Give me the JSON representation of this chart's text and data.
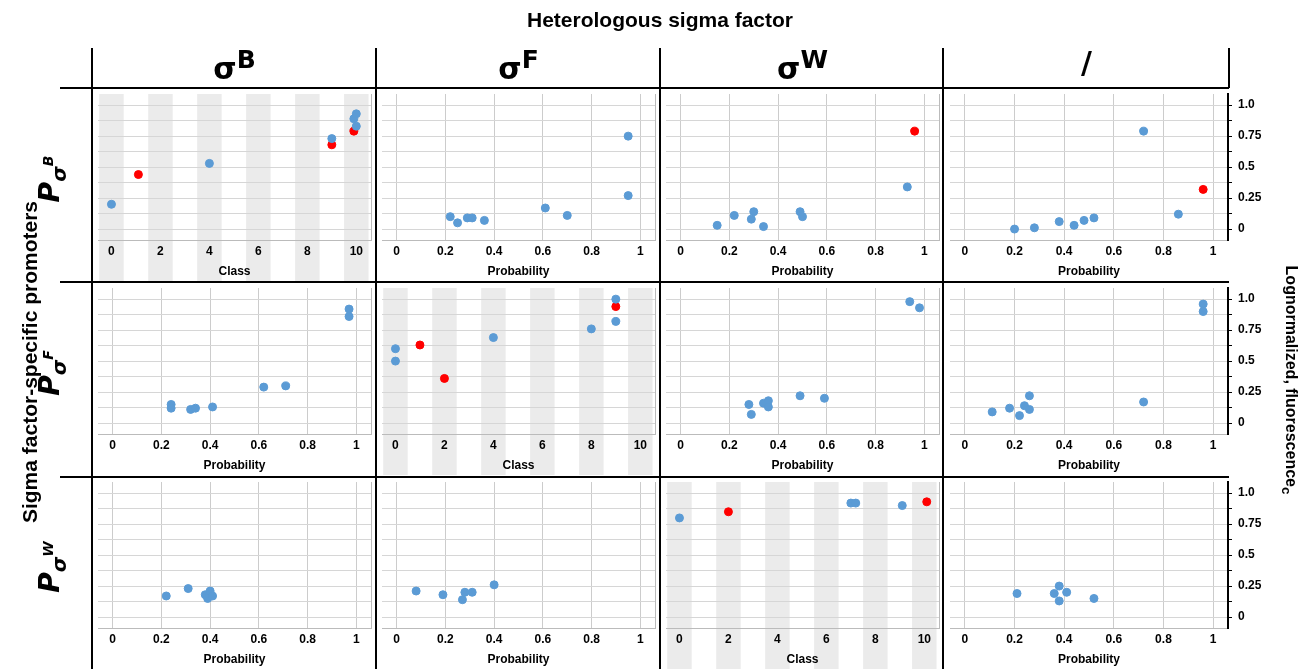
{
  "chart_data": [
    {
      "type": "other",
      "title": "Heterologous sigma factor",
      "ylabel": "Sigma factor-specific promoters",
      "y2label": "Lognormalized, fluorescence$_{c}$"
    },
    {
      "type": "scatter",
      "title": "σ$^{B}$",
      "ylabel": "P$_{σ}$$^{B}$",
      "xlabel": "Class",
      "xlim": [
        -0.55,
        10.6
      ],
      "xticks": [
        0,
        2,
        4,
        6,
        8,
        10
      ],
      "ylim": [
        -0.09,
        1.09
      ],
      "yticks": [
        0,
        0.125,
        0.25,
        0.375,
        0.5,
        0.625,
        0.75,
        0.875,
        1
      ],
      "grid": "y",
      "tick_labels": "x",
      "marker": "circle",
      "legend": false,
      "bands": [
        {
          "axis": "x",
          "from": -0.5,
          "to": 0.5,
          "color": "#ebebeb"
        },
        {
          "axis": "x",
          "from": 1.5,
          "to": 2.5,
          "color": "#ebebeb"
        },
        {
          "axis": "x",
          "from": 3.5,
          "to": 4.5,
          "color": "#ebebeb"
        },
        {
          "axis": "x",
          "from": 5.5,
          "to": 6.5,
          "color": "#ebebeb"
        },
        {
          "axis": "x",
          "from": 7.5,
          "to": 8.5,
          "color": "#ebebeb"
        },
        {
          "axis": "x",
          "from": 9.5,
          "to": 10.5,
          "color": "#ebebeb"
        }
      ],
      "series": [
        {
          "color": "#5b9bd5",
          "x": [
            0,
            4,
            9,
            9.9,
            10,
            10
          ],
          "values": [
            0.2,
            0.53,
            0.73,
            0.89,
            0.93,
            0.83
          ]
        },
        {
          "color": "#ff0000",
          "x": [
            1.1,
            9,
            9.9
          ],
          "values": [
            0.44,
            0.68,
            0.79
          ]
        }
      ]
    },
    {
      "type": "scatter",
      "title": "σ$^{F}$",
      "xlabel": "Probability",
      "xlim": [
        -0.06,
        1.06
      ],
      "xticks": [
        0,
        0.2,
        0.4,
        0.6,
        0.8,
        1
      ],
      "ylim": [
        -0.09,
        1.09
      ],
      "yticks": [
        0,
        0.125,
        0.25,
        0.375,
        0.5,
        0.625,
        0.75,
        0.875,
        1
      ],
      "grid": true,
      "tick_labels": "x",
      "marker": "circle",
      "legend": false,
      "series": [
        {
          "color": "#5b9bd5",
          "x": [
            0.22,
            0.25,
            0.29,
            0.31,
            0.36,
            0.61,
            0.7,
            0.95,
            0.95
          ],
          "values": [
            0.1,
            0.05,
            0.09,
            0.09,
            0.07,
            0.17,
            0.11,
            0.75,
            0.27
          ]
        }
      ]
    },
    {
      "type": "scatter",
      "title": "σ$^{W}$",
      "xlabel": "Probability",
      "xlim": [
        -0.06,
        1.06
      ],
      "xticks": [
        0,
        0.2,
        0.4,
        0.6,
        0.8,
        1
      ],
      "ylim": [
        -0.09,
        1.09
      ],
      "yticks": [
        0,
        0.125,
        0.25,
        0.375,
        0.5,
        0.625,
        0.75,
        0.875,
        1
      ],
      "grid": true,
      "tick_labels": "x",
      "marker": "circle",
      "legend": false,
      "series": [
        {
          "color": "#5b9bd5",
          "x": [
            0.15,
            0.22,
            0.29,
            0.3,
            0.34,
            0.49,
            0.5,
            0.93
          ],
          "values": [
            0.03,
            0.11,
            0.08,
            0.14,
            0.02,
            0.14,
            0.1,
            0.34
          ]
        },
        {
          "color": "#ff0000",
          "x": [
            0.96
          ],
          "values": [
            0.79
          ]
        }
      ]
    },
    {
      "type": "scatter",
      "title": "/",
      "xlabel": "Probability",
      "xlim": [
        -0.06,
        1.06
      ],
      "xticks": [
        0,
        0.2,
        0.4,
        0.6,
        0.8,
        1
      ],
      "ylim": [
        -0.09,
        1.09
      ],
      "yticks": [
        0,
        {
          "value": 0.125,
          "label": null
        },
        0.25,
        {
          "value": 0.375,
          "label": null
        },
        0.5,
        {
          "value": 0.625,
          "label": null
        },
        0.75,
        {
          "value": 0.875,
          "label": null
        },
        {
          "value": 1,
          "label": "1.0"
        }
      ],
      "grid": true,
      "marker": "circle",
      "legend": false,
      "series": [
        {
          "color": "#5b9bd5",
          "x": [
            0.2,
            0.28,
            0.38,
            0.44,
            0.48,
            0.52,
            0.72,
            0.86
          ],
          "values": [
            0,
            0.01,
            0.06,
            0.03,
            0.07,
            0.09,
            0.79,
            0.12
          ]
        },
        {
          "color": "#ff0000",
          "x": [
            0.96
          ],
          "values": [
            0.32
          ]
        }
      ]
    },
    {
      "type": "scatter",
      "ylabel": "P$_{σ}$$^{F}$",
      "xlabel": "Probability",
      "xlim": [
        -0.06,
        1.06
      ],
      "xticks": [
        0,
        0.2,
        0.4,
        0.6,
        0.8,
        1
      ],
      "ylim": [
        -0.09,
        1.09
      ],
      "yticks": [
        0,
        0.125,
        0.25,
        0.375,
        0.5,
        0.625,
        0.75,
        0.875,
        1
      ],
      "grid": true,
      "tick_labels": "x",
      "marker": "circle",
      "legend": false,
      "series": [
        {
          "color": "#5b9bd5",
          "x": [
            0.24,
            0.24,
            0.32,
            0.34,
            0.41,
            0.62,
            0.71,
            0.97,
            0.97
          ],
          "values": [
            0.15,
            0.12,
            0.11,
            0.12,
            0.13,
            0.29,
            0.3,
            0.92,
            0.86
          ]
        }
      ]
    },
    {
      "type": "scatter",
      "xlabel": "Class",
      "xlim": [
        -0.55,
        10.6
      ],
      "xticks": [
        0,
        2,
        4,
        6,
        8,
        10
      ],
      "ylim": [
        -0.09,
        1.09
      ],
      "yticks": [
        0,
        0.125,
        0.25,
        0.375,
        0.5,
        0.625,
        0.75,
        0.875,
        1
      ],
      "grid": "y",
      "tick_labels": "x",
      "marker": "circle",
      "legend": false,
      "bands": [
        {
          "axis": "x",
          "from": -0.5,
          "to": 0.5,
          "color": "#ebebeb"
        },
        {
          "axis": "x",
          "from": 1.5,
          "to": 2.5,
          "color": "#ebebeb"
        },
        {
          "axis": "x",
          "from": 3.5,
          "to": 4.5,
          "color": "#ebebeb"
        },
        {
          "axis": "x",
          "from": 5.5,
          "to": 6.5,
          "color": "#ebebeb"
        },
        {
          "axis": "x",
          "from": 7.5,
          "to": 8.5,
          "color": "#ebebeb"
        },
        {
          "axis": "x",
          "from": 9.5,
          "to": 10.5,
          "color": "#ebebeb"
        }
      ],
      "series": [
        {
          "color": "#5b9bd5",
          "x": [
            0,
            0,
            4,
            8,
            9,
            9
          ],
          "values": [
            0.6,
            0.5,
            0.69,
            0.76,
            1.0,
            0.82
          ]
        },
        {
          "color": "#ff0000",
          "x": [
            1,
            2,
            9
          ],
          "values": [
            0.63,
            0.36,
            0.94
          ]
        }
      ]
    },
    {
      "type": "scatter",
      "xlabel": "Probability",
      "xlim": [
        -0.06,
        1.06
      ],
      "xticks": [
        0,
        0.2,
        0.4,
        0.6,
        0.8,
        1
      ],
      "ylim": [
        -0.09,
        1.09
      ],
      "yticks": [
        0,
        0.125,
        0.25,
        0.375,
        0.5,
        0.625,
        0.75,
        0.875,
        1
      ],
      "grid": true,
      "tick_labels": "x",
      "marker": "circle",
      "legend": false,
      "series": [
        {
          "color": "#5b9bd5",
          "x": [
            0.28,
            0.29,
            0.34,
            0.36,
            0.36,
            0.49,
            0.59,
            0.94,
            0.98
          ],
          "values": [
            0.15,
            0.07,
            0.16,
            0.18,
            0.13,
            0.22,
            0.2,
            0.98,
            0.93
          ]
        }
      ]
    },
    {
      "type": "scatter",
      "xlabel": "Probability",
      "xlim": [
        -0.06,
        1.06
      ],
      "xticks": [
        0,
        0.2,
        0.4,
        0.6,
        0.8,
        1
      ],
      "ylim": [
        -0.09,
        1.09
      ],
      "yticks": [
        0,
        {
          "value": 0.125,
          "label": null
        },
        0.25,
        {
          "value": 0.375,
          "label": null
        },
        0.5,
        {
          "value": 0.625,
          "label": null
        },
        0.75,
        {
          "value": 0.875,
          "label": null
        },
        {
          "value": 1,
          "label": "1.0"
        }
      ],
      "grid": true,
      "marker": "circle",
      "legend": false,
      "series": [
        {
          "color": "#5b9bd5",
          "x": [
            0.11,
            0.18,
            0.22,
            0.24,
            0.26,
            0.26,
            0.72,
            0.96,
            0.96
          ],
          "values": [
            0.09,
            0.12,
            0.06,
            0.14,
            0.22,
            0.11,
            0.17,
            0.96,
            0.9
          ]
        }
      ]
    },
    {
      "type": "scatter",
      "ylabel": "P$_{σ}$$^{W}$",
      "xlabel": "Probability",
      "xlim": [
        -0.06,
        1.06
      ],
      "xticks": [
        0,
        0.2,
        0.4,
        0.6,
        0.8,
        1
      ],
      "ylim": [
        -0.09,
        1.09
      ],
      "yticks": [
        0,
        0.125,
        0.25,
        0.375,
        0.5,
        0.625,
        0.75,
        0.875,
        1
      ],
      "grid": true,
      "tick_labels": "x",
      "marker": "circle",
      "legend": false,
      "series": [
        {
          "color": "#5b9bd5",
          "x": [
            0.22,
            0.31,
            0.38,
            0.4,
            0.39,
            0.41
          ],
          "values": [
            0.17,
            0.23,
            0.18,
            0.21,
            0.15,
            0.17
          ]
        }
      ]
    },
    {
      "type": "scatter",
      "xlabel": "Probability",
      "xlim": [
        -0.06,
        1.06
      ],
      "xticks": [
        0,
        0.2,
        0.4,
        0.6,
        0.8,
        1
      ],
      "ylim": [
        -0.09,
        1.09
      ],
      "yticks": [
        0,
        0.125,
        0.25,
        0.375,
        0.5,
        0.625,
        0.75,
        0.875,
        1
      ],
      "grid": true,
      "tick_labels": "x",
      "marker": "circle",
      "legend": false,
      "series": [
        {
          "color": "#5b9bd5",
          "x": [
            0.08,
            0.19,
            0.27,
            0.28,
            0.31,
            0.4
          ],
          "values": [
            0.21,
            0.18,
            0.14,
            0.2,
            0.2,
            0.26
          ]
        }
      ]
    },
    {
      "type": "scatter",
      "xlabel": "Class",
      "xlim": [
        -0.55,
        10.6
      ],
      "xticks": [
        0,
        2,
        4,
        6,
        8,
        10
      ],
      "ylim": [
        -0.09,
        1.09
      ],
      "yticks": [
        0,
        0.125,
        0.25,
        0.375,
        0.5,
        0.625,
        0.75,
        0.875,
        1
      ],
      "grid": "y",
      "tick_labels": "x",
      "marker": "circle",
      "legend": false,
      "bands": [
        {
          "axis": "x",
          "from": -0.5,
          "to": 0.5,
          "color": "#ebebeb"
        },
        {
          "axis": "x",
          "from": 1.5,
          "to": 2.5,
          "color": "#ebebeb"
        },
        {
          "axis": "x",
          "from": 3.5,
          "to": 4.5,
          "color": "#ebebeb"
        },
        {
          "axis": "x",
          "from": 5.5,
          "to": 6.5,
          "color": "#ebebeb"
        },
        {
          "axis": "x",
          "from": 7.5,
          "to": 8.5,
          "color": "#ebebeb"
        },
        {
          "axis": "x",
          "from": 9.5,
          "to": 10.5,
          "color": "#ebebeb"
        }
      ],
      "series": [
        {
          "color": "#5b9bd5",
          "x": [
            0,
            7,
            7.2,
            9.1
          ],
          "values": [
            0.8,
            0.92,
            0.92,
            0.9
          ]
        },
        {
          "color": "#ff0000",
          "x": [
            2,
            10.1
          ],
          "values": [
            0.85,
            0.93
          ]
        }
      ]
    },
    {
      "type": "scatter",
      "xlabel": "Probability",
      "xlim": [
        -0.06,
        1.06
      ],
      "xticks": [
        0,
        0.2,
        0.4,
        0.6,
        0.8,
        1
      ],
      "ylim": [
        -0.09,
        1.09
      ],
      "yticks": [
        0,
        {
          "value": 0.125,
          "label": null
        },
        0.25,
        {
          "value": 0.375,
          "label": null
        },
        0.5,
        {
          "value": 0.625,
          "label": null
        },
        0.75,
        {
          "value": 0.875,
          "label": null
        },
        {
          "value": 1,
          "label": "1.0"
        }
      ],
      "grid": true,
      "marker": "circle",
      "legend": false,
      "series": [
        {
          "color": "#5b9bd5",
          "x": [
            0.21,
            0.36,
            0.38,
            0.41,
            0.38,
            0.52
          ],
          "values": [
            0.19,
            0.19,
            0.25,
            0.2,
            0.13,
            0.15
          ]
        }
      ]
    }
  ]
}
